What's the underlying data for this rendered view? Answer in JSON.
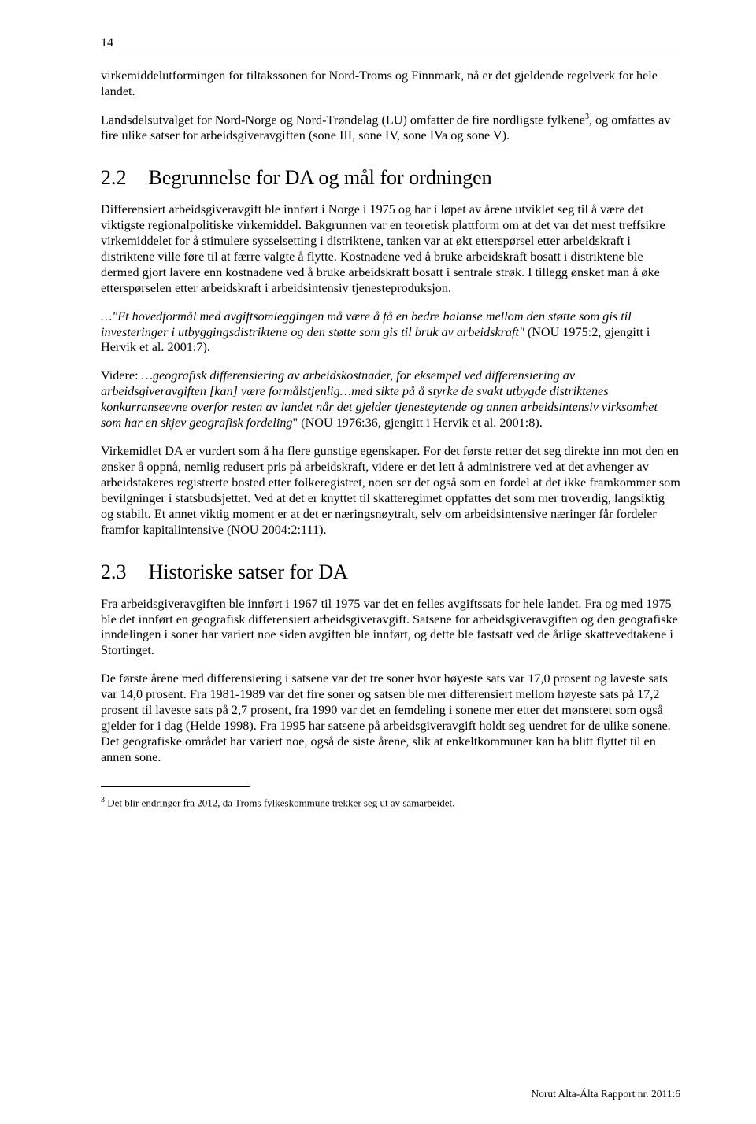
{
  "page_number": "14",
  "intro_para_1": "virkemiddelutformingen for tiltakssonen for Nord-Troms og Finnmark, nå er det gjeldende regelverk for hele landet.",
  "intro_para_2a": "Landsdelsutvalget for Nord-Norge og Nord-Trøndelag (LU) omfatter de fire nordligste fylkene",
  "intro_para_2_sup": "3",
  "intro_para_2b": ", og omfattes av fire ulike satser for arbeidsgiveravgiften (sone III, sone IV, sone IVa og sone V).",
  "section_2_2": {
    "num": "2.2",
    "title": "Begrunnelse for DA og mål for ordningen",
    "p1": "Differensiert arbeidsgiveravgift ble innført i Norge i 1975 og har i løpet av årene utviklet seg til å være det viktigste regionalpolitiske virkemiddel. Bakgrunnen var en teoretisk plattform om at det var det mest treffsikre virkemiddelet for å stimulere sysselsetting i distriktene, tanken var at økt etterspørsel etter arbeidskraft i distriktene ville føre til at færre valgte å flytte. Kostnadene ved å bruke arbeidskraft bosatt i distriktene ble dermed gjort lavere enn kostnadene ved å bruke arbeidskraft bosatt i sentrale strøk. I tillegg ønsket man å øke etterspørselen etter arbeidskraft i arbeidsintensiv tjenesteproduksjon.",
    "p2_italic": "…\"Et hovedformål med avgiftsomleggingen må være å få en bedre balanse mellom den støtte som gis til investeringer i utbyggingsdistriktene og den støtte som gis til bruk av arbeidskraft\"",
    "p2_tail": " (NOU 1975:2, gjengitt i Hervik et al. 2001:7).",
    "p3_lead": "Videre: ",
    "p3_italic": "…geografisk differensiering av arbeidskostnader, for eksempel ved differensiering av arbeidsgiveravgiften [kan] være formålstjenlig…med sikte på å styrke de svakt utbygde distriktenes konkurranseevne overfor resten av landet når det gjelder tjenesteytende og annen arbeidsintensiv virksomhet som har en skjev geografisk fordeling",
    "p3_tail": "\" (NOU 1976:36, gjengitt i Hervik et al. 2001:8).",
    "p4": "Virkemidlet DA er vurdert som å ha flere gunstige egenskaper. For det første retter det seg direkte inn mot den en ønsker å oppnå, nemlig redusert pris på arbeidskraft, videre er det lett å administrere ved at det avhenger av arbeidstakeres registrerte bosted etter folkeregistret, noen ser det også som en fordel at det ikke framkommer som bevilgninger i statsbudsjettet. Ved at det er knyttet til skatteregimet oppfattes det som mer troverdig, langsiktig og stabilt. Et annet viktig moment er at det er næringsnøytralt, selv om arbeidsintensive næringer får fordeler framfor kapitalintensive (NOU 2004:2:111)."
  },
  "section_2_3": {
    "num": "2.3",
    "title": "Historiske satser for DA",
    "p1": "Fra arbeidsgiveravgiften ble innført i 1967 til 1975 var det en felles avgiftssats for hele landet. Fra og med 1975 ble det innført en geografisk differensiert arbeidsgiveravgift. Satsene for arbeidsgiveravgiften og den geografiske inndelingen i soner har variert noe siden avgiften ble innført, og dette ble fastsatt ved de årlige skattevedtakene i Stortinget.",
    "p2": "De første årene med differensiering i satsene var det tre soner hvor høyeste sats var 17,0 prosent og laveste sats var 14,0 prosent. Fra 1981-1989 var det fire soner og satsen ble mer differensiert mellom høyeste sats på 17,2 prosent til laveste sats på 2,7 prosent, fra 1990 var det en femdeling i sonene mer etter det mønsteret som også gjelder for i dag (Helde 1998). Fra 1995 har satsene på arbeidsgiveravgift holdt seg uendret for de ulike sonene. Det geografiske området har variert noe, også de siste årene, slik at enkeltkommuner kan ha blitt flyttet til en annen sone."
  },
  "footnote": {
    "marker": "3",
    "text": " Det blir endringer fra 2012, da Troms fylkeskommune trekker seg ut av samarbeidet."
  },
  "footer": "Norut Alta-Álta Rapport nr. 2011:6"
}
